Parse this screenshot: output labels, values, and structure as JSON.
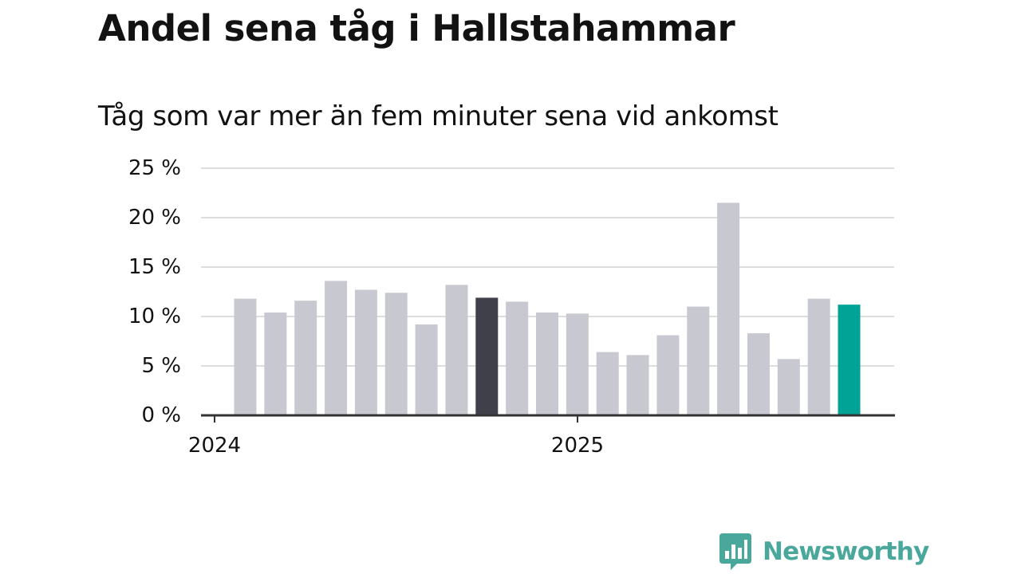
{
  "title": "Andel sena tåg i Hallstahammar",
  "subtitle": "Tåg som var mer än fem minuter sena vid ankomst",
  "brand": {
    "name": "Newsworthy",
    "color": "#4aa79b"
  },
  "colors": {
    "bar_default": "#c8c8d0",
    "bar_highlight_dark": "#40404a",
    "bar_latest": "#00a396",
    "gridline": "#dddddd",
    "axis": "#333333",
    "text": "#121212"
  },
  "chart_data": {
    "type": "bar",
    "ytick_labels": [
      "0 %",
      "5 %",
      "10 %",
      "15 %",
      "20 %",
      "25 %"
    ],
    "yticks": [
      0,
      5,
      10,
      15,
      20,
      25
    ],
    "ylim": [
      0,
      25
    ],
    "xtick_labels": [
      "2024",
      "2025"
    ],
    "grid": true,
    "legend": "none",
    "series": [
      {
        "values": [
          11.8,
          10.4,
          11.6,
          13.6,
          12.7,
          12.4,
          9.2,
          13.2,
          11.9,
          11.5,
          10.4,
          10.3,
          6.4,
          6.1,
          8.1,
          11.0,
          21.5,
          8.3,
          5.7,
          11.8,
          11.2
        ]
      }
    ],
    "highlight": {
      "dark_index": 8,
      "latest_index": 20
    }
  }
}
